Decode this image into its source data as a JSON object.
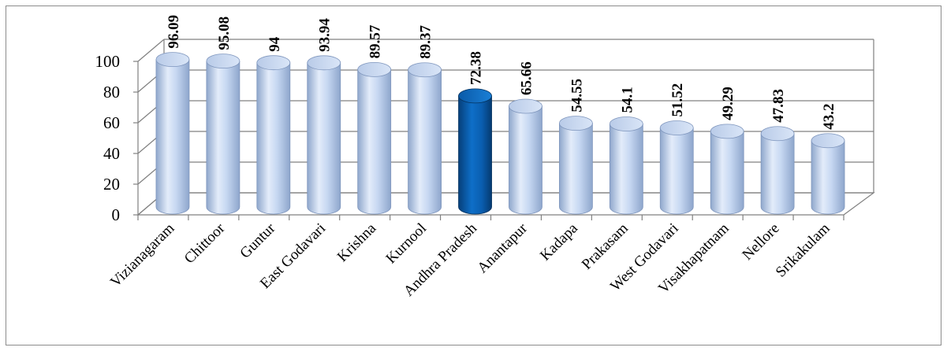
{
  "chart_data": {
    "type": "bar",
    "title": "",
    "xlabel": "",
    "ylabel": "",
    "ylim": [
      0,
      100
    ],
    "yticks": [
      "0",
      "20",
      "40",
      "60",
      "80",
      "100"
    ],
    "grid": true,
    "legend": "none",
    "categories": [
      "Vizianagaram",
      "Chittoor",
      "Guntur",
      "East Godavari",
      "Krishna",
      "Kurnool",
      "Andhra Pradesh",
      "Anantapur",
      "Kadapa",
      "Prakasam",
      "West Godavari",
      "Visakhapatnam",
      "Nellore",
      "Srikakulam"
    ],
    "values": [
      96.09,
      95.08,
      94,
      93.94,
      89.57,
      89.37,
      72.38,
      65.66,
      54.55,
      54.1,
      51.52,
      49.29,
      47.83,
      43.2
    ],
    "value_labels": [
      "96.09",
      "95.08",
      "94",
      "93.94",
      "89.57",
      "89.37",
      "72.38",
      "65.66",
      "54.55",
      "54.1",
      "51.52",
      "49.29",
      "47.83",
      "43.2"
    ],
    "highlight_category": "Andhra Pradesh",
    "colors": {
      "bar": "#c5d6f0",
      "bar_highlight": "#0b63b8",
      "grid": "#808080"
    }
  }
}
